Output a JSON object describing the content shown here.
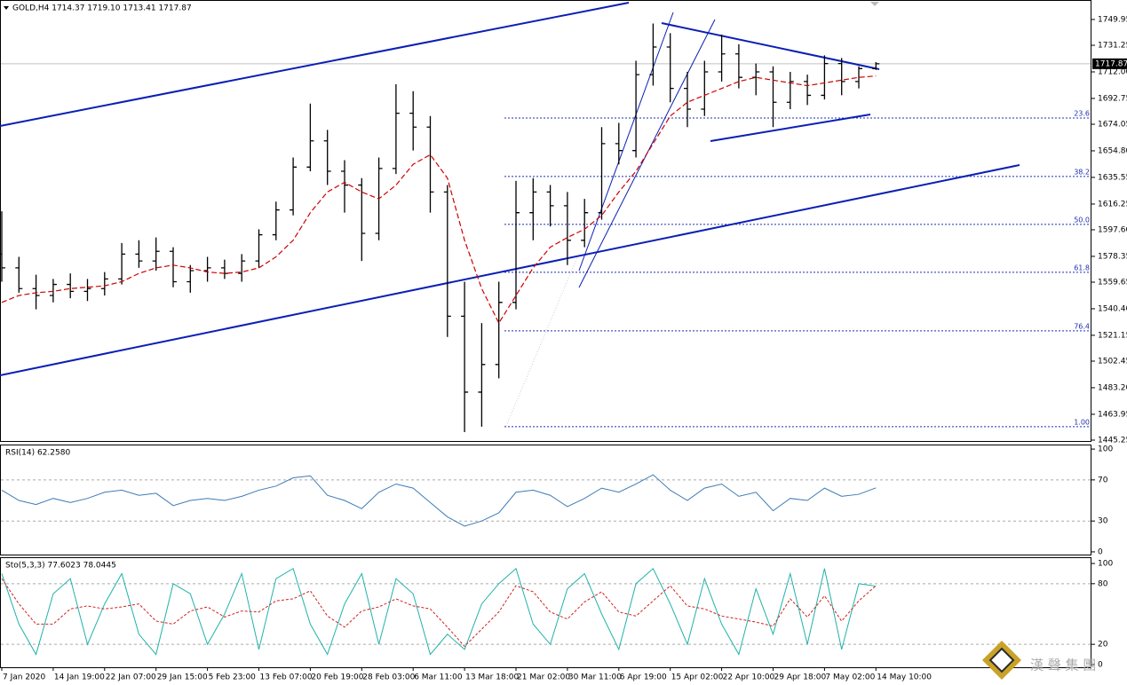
{
  "chart_data": [
    {
      "type": "ohlc",
      "title": "GOLD,H4  1714.37 1719.10 1713.41 1717.87",
      "categories": [
        "7 Jan 2020",
        null,
        null,
        "14 Jan 19:00",
        null,
        null,
        "22 Jan 07:00",
        null,
        null,
        "29 Jan 15:00",
        null,
        null,
        "5 Feb 23:00",
        null,
        null,
        "13 Feb 07:00",
        null,
        null,
        "20 Feb 19:00",
        null,
        null,
        "28 Feb 03:00",
        null,
        null,
        "6 Mar 11:00",
        null,
        null,
        "13 Mar 18:00",
        null,
        null,
        "21 Mar 02:00",
        null,
        null,
        "30 Mar 11:00",
        null,
        null,
        "6 Apr 19:00",
        null,
        null,
        "15 Apr 02:00",
        null,
        null,
        "22 Apr 10:00",
        null,
        null,
        "29 Apr 18:00",
        null,
        null,
        "7 May 02:00",
        null,
        null,
        "14 May 10:00"
      ],
      "ohlc": {
        "color": "#000000",
        "open": [
          1580,
          1570,
          1555,
          1550,
          1558,
          1553,
          1555,
          1562,
          1580,
          1575,
          1582,
          1560,
          1568,
          1570,
          1566,
          1575,
          1594,
          1612,
          1643,
          1662,
          1640,
          1630,
          1595,
          1642,
          1682,
          1672,
          1625,
          1535,
          1480,
          1500,
          1545,
          1610,
          1625,
          1615,
          1590,
          1610,
          1660,
          1655,
          1710,
          1730,
          1700,
          1685,
          1712,
          1725,
          1708,
          1712,
          1690,
          1705,
          1695,
          1718,
          1705,
          1714.37
        ],
        "high": [
          1611,
          1578,
          1565,
          1562,
          1566,
          1562,
          1567,
          1588,
          1590,
          1592,
          1585,
          1572,
          1578,
          1576,
          1580,
          1598,
          1618,
          1650,
          1689,
          1670,
          1648,
          1635,
          1650,
          1703,
          1698,
          1680,
          1630,
          1560,
          1530,
          1560,
          1633,
          1635,
          1630,
          1625,
          1620,
          1672,
          1675,
          1720,
          1747,
          1740,
          1712,
          1720,
          1739,
          1732,
          1718,
          1716,
          1712,
          1710,
          1724,
          1722,
          1716,
          1719.1
        ],
        "low": [
          1560,
          1552,
          1540,
          1545,
          1548,
          1546,
          1550,
          1558,
          1570,
          1568,
          1556,
          1552,
          1560,
          1562,
          1560,
          1570,
          1590,
          1608,
          1640,
          1630,
          1610,
          1575,
          1590,
          1638,
          1655,
          1610,
          1520,
          1451,
          1455,
          1490,
          1540,
          1590,
          1600,
          1572,
          1585,
          1605,
          1645,
          1650,
          1702,
          1690,
          1672,
          1680,
          1705,
          1700,
          1695,
          1672,
          1685,
          1688,
          1692,
          1695,
          1700,
          1713.41
        ],
        "close": [
          1570,
          1555,
          1550,
          1558,
          1553,
          1555,
          1562,
          1580,
          1575,
          1582,
          1560,
          1568,
          1570,
          1566,
          1575,
          1594,
          1612,
          1643,
          1662,
          1640,
          1630,
          1595,
          1642,
          1682,
          1672,
          1625,
          1535,
          1480,
          1500,
          1545,
          1610,
          1625,
          1615,
          1590,
          1610,
          1660,
          1655,
          1710,
          1730,
          1700,
          1685,
          1712,
          1725,
          1708,
          1712,
          1690,
          1705,
          1695,
          1718,
          1705,
          1714.37,
          1717.87
        ]
      },
      "ma": {
        "color": "#cc0000",
        "values": [
          1545,
          1550,
          1552,
          1553,
          1555,
          1556,
          1557,
          1560,
          1566,
          1570,
          1572,
          1570,
          1567,
          1566,
          1567,
          1570,
          1578,
          1590,
          1610,
          1625,
          1632,
          1625,
          1620,
          1630,
          1645,
          1652,
          1635,
          1590,
          1555,
          1530,
          1550,
          1570,
          1585,
          1592,
          1598,
          1608,
          1625,
          1640,
          1660,
          1680,
          1690,
          1695,
          1700,
          1705,
          1708,
          1706,
          1704,
          1702,
          1704,
          1706,
          1708,
          1709
        ]
      },
      "last_price": 1717.87,
      "fib_color": "#1f2fb4",
      "fib_levels": [
        {
          "label": "23.6",
          "value": 1678.6
        },
        {
          "label": "38.2",
          "value": 1636.2
        },
        {
          "label": "50.0",
          "value": 1601.5
        },
        {
          "label": "61.8",
          "value": 1566.8
        },
        {
          "label": "76.4",
          "value": 1524.4
        },
        {
          "label": "1.00",
          "value": 1455.0
        }
      ],
      "ylim": [
        1444.6,
        1760.2
      ],
      "yticks": [
        1749.95,
        1731.25,
        {
          "value": 1712,
          "label": "1712.00"
        },
        1692.75,
        1674.05,
        {
          "value": 1654.8,
          "label": "1654.80"
        },
        1635.55,
        1616.25,
        {
          "value": 1597.6,
          "label": "1597.60"
        },
        1578.35,
        1559.65,
        {
          "value": 1540.4,
          "label": "1540.40"
        },
        1521.15,
        1502.45,
        {
          "value": 1483.2,
          "label": "1483.20"
        },
        1463.95,
        1445.25
      ]
    },
    {
      "type": "line",
      "title": "RSI(14) 62.2580",
      "color": "#3d7bb5",
      "values": [
        60,
        50,
        46,
        52,
        48,
        52,
        58,
        60,
        55,
        57,
        45,
        50,
        52,
        50,
        54,
        60,
        64,
        72,
        74,
        55,
        50,
        42,
        58,
        66,
        62,
        48,
        34,
        25,
        30,
        38,
        58,
        60,
        55,
        44,
        52,
        62,
        58,
        66,
        75,
        60,
        50,
        62,
        66,
        54,
        58,
        40,
        52,
        50,
        62,
        54,
        56,
        62.258
      ],
      "levels": [
        30,
        70
      ],
      "ylim": [
        -3.5,
        104.4
      ],
      "yticks": [
        100,
        70,
        30,
        0
      ]
    },
    {
      "type": "line",
      "title": "Sto(5,3,3) 77.6023 78.0445",
      "series": [
        {
          "color": "#20b2aa",
          "dashed": false,
          "values": [
            90,
            40,
            10,
            70,
            85,
            20,
            60,
            90,
            30,
            10,
            80,
            70,
            20,
            50,
            90,
            15,
            85,
            95,
            40,
            10,
            60,
            90,
            20,
            85,
            70,
            10,
            30,
            15,
            60,
            80,
            95,
            40,
            20,
            75,
            90,
            50,
            15,
            80,
            95,
            60,
            20,
            85,
            40,
            10,
            75,
            30,
            90,
            20,
            95,
            15,
            80,
            77.6
          ]
        },
        {
          "color": "#d02020",
          "dashed": true,
          "values": [
            85,
            60,
            40,
            40,
            55,
            58,
            55,
            57,
            60,
            43,
            40,
            53,
            57,
            47,
            53,
            52,
            63,
            65,
            73,
            48,
            37,
            53,
            57,
            65,
            58,
            55,
            37,
            18,
            35,
            52,
            78,
            72,
            52,
            45,
            62,
            72,
            52,
            48,
            63,
            78,
            58,
            55,
            48,
            45,
            42,
            38,
            65,
            47,
            68,
            43,
            63,
            78.04
          ]
        }
      ],
      "levels": [
        20,
        80
      ],
      "ylim": [
        -2.7,
        106.2
      ],
      "yticks": [
        100,
        80,
        20,
        0
      ]
    }
  ],
  "logo_text": "漢 聲 集 團"
}
